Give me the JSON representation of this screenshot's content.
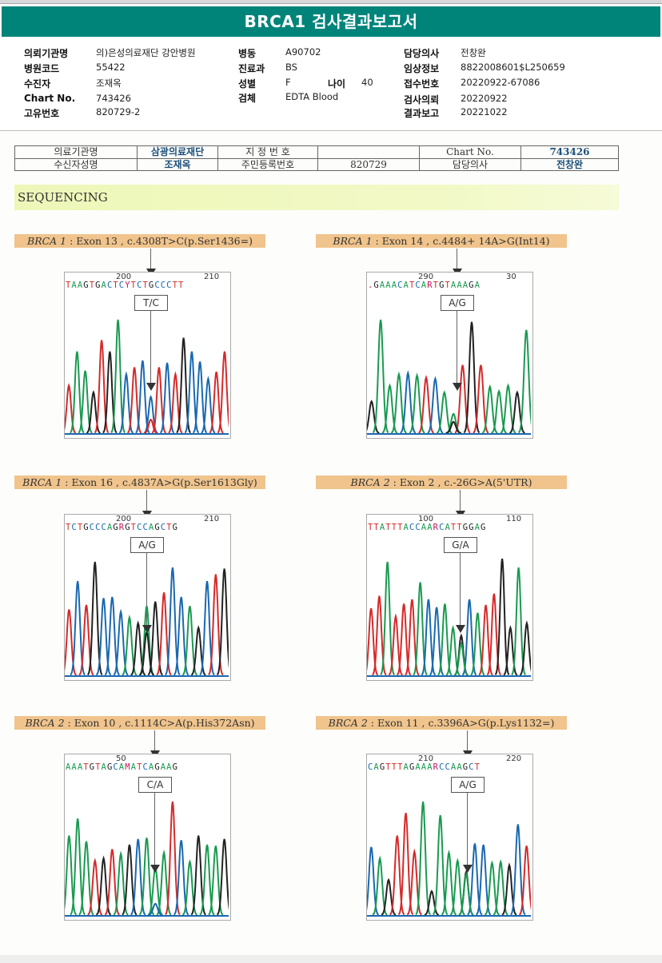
{
  "title": "BRCA1 검사결과보고서",
  "header_info": {
    "col1": [
      {
        "label": "의뢰기관명",
        "value": "의)은성의료재단 강안병원"
      },
      {
        "label": "병원코드",
        "value": "55422"
      },
      {
        "label": "수진자",
        "value": "조재옥"
      },
      {
        "label": "Chart No.",
        "value": "743426"
      },
      {
        "label": "고유번호",
        "value": "820729-2"
      }
    ],
    "col2": [
      {
        "label": "병동",
        "value": "A90702"
      },
      {
        "label": "진료과",
        "value": "BS"
      },
      {
        "label": "성별",
        "value": "F"
      },
      {
        "label": "검체",
        "value": "EDTA Blood"
      }
    ],
    "age": {
      "label": "나이",
      "value": "40"
    },
    "col3": [
      {
        "label": "담당의사",
        "value": "전창완"
      },
      {
        "label": "임상정보",
        "value": "8822008601$L250659"
      },
      {
        "label": "접수번호",
        "value": "20220922-67086"
      },
      {
        "label": "검사의뢰",
        "value": "20220922"
      },
      {
        "label": "결과보고",
        "value": "20221022"
      }
    ]
  },
  "patient_table": {
    "row1": [
      "의료기관명",
      "삼광의료재단",
      "지 정 번 호",
      "",
      "Chart No.",
      "743426"
    ],
    "row2": [
      "수신자성명",
      "조재옥",
      "주민등록번호",
      "820729",
      "담당의사",
      "전창완"
    ]
  },
  "section_title": "SEQUENCING",
  "colors": {
    "header_bg": "#00847a",
    "variant_label_bg": "#f0c48c",
    "section_bg": "#eef7b8",
    "base_A": "#1a9a50",
    "base_C": "#1a68b0",
    "base_G": "#222222",
    "base_T": "#d62a2a",
    "base_ambiguous": "#c2185b"
  },
  "panels": [
    {
      "gene": "BRCA 1",
      "desc": " : Exon 13 , c.4308T>C(p.Ser1436=)",
      "tick_left": "200",
      "tick_right": "210",
      "sequence": "TAAGTGACTCYTCTGCCCTT",
      "genotype": "T/C",
      "chart_data": {
        "type": "line",
        "title": "BRCA 1 : Exon 13 , c.4308T>C(p.Ser1436=)",
        "x_labels": [
          "200",
          "210"
        ],
        "peaks": [
          {
            "base": "T",
            "h": 0.42
          },
          {
            "base": "A",
            "h": 0.72
          },
          {
            "base": "A",
            "h": 0.55
          },
          {
            "base": "G",
            "h": 0.36
          },
          {
            "base": "T",
            "h": 0.82
          },
          {
            "base": "G",
            "h": 0.72
          },
          {
            "base": "A",
            "h": 1.0
          },
          {
            "base": "C",
            "h": 0.52
          },
          {
            "base": "T",
            "h": 0.58
          },
          {
            "base": "C",
            "h": 0.64
          },
          {
            "base": "C",
            "h": 0.32
          },
          {
            "base": "T",
            "h": 0.58
          },
          {
            "base": "C",
            "h": 0.62
          },
          {
            "base": "T",
            "h": 0.52
          },
          {
            "base": "G",
            "h": 0.84
          },
          {
            "base": "C",
            "h": 0.72
          },
          {
            "base": "C",
            "h": 0.63
          },
          {
            "base": "C",
            "h": 0.48
          },
          {
            "base": "T",
            "h": 0.54
          },
          {
            "base": "T",
            "h": 0.72
          }
        ],
        "minor_peaks": [
          {
            "pos": 10,
            "base": "T",
            "h": 0.12
          }
        ]
      }
    },
    {
      "gene": "BRCA 1",
      "desc": " : Exon 14 , c.4484+ 14A>G(Int14)",
      "tick_left": "290",
      "tick_right": "30",
      "sequence": ".GAAACATCARTGTAAAGA",
      "genotype": "A/G",
      "chart_data": {
        "type": "line",
        "title": "BRCA 1 : Exon 14 , c.4484+ 14A>G(Int14)",
        "x_labels": [
          "290",
          "30"
        ],
        "peaks": [
          {
            "base": "G",
            "h": 0.28
          },
          {
            "base": "A",
            "h": 1.0
          },
          {
            "base": "A",
            "h": 0.42
          },
          {
            "base": "A",
            "h": 0.52
          },
          {
            "base": "C",
            "h": 0.53
          },
          {
            "base": "A",
            "h": 0.51
          },
          {
            "base": "T",
            "h": 0.49
          },
          {
            "base": "C",
            "h": 0.48
          },
          {
            "base": "A",
            "h": 0.36
          },
          {
            "base": "A",
            "h": 0.17
          },
          {
            "base": "T",
            "h": 0.6
          },
          {
            "base": "G",
            "h": 0.98
          },
          {
            "base": "T",
            "h": 0.6
          },
          {
            "base": "A",
            "h": 0.41
          },
          {
            "base": "A",
            "h": 0.37
          },
          {
            "base": "A",
            "h": 0.42
          },
          {
            "base": "G",
            "h": 0.36
          },
          {
            "base": "A",
            "h": 0.91
          }
        ],
        "minor_peaks": [
          {
            "pos": 9,
            "base": "G",
            "h": 0.1
          }
        ]
      }
    },
    {
      "gene": "BRCA 1",
      "desc": " : Exon 16 , c.4837A>G(p.Ser1613Gly)",
      "tick_left": "200",
      "tick_right": "210",
      "sequence": "TCTGCCCAGRGTCCAGCTG",
      "genotype": "A/G",
      "chart_data": {
        "type": "line",
        "title": "BRCA 1 : Exon 16 , c.4837A>G(p.Ser1613Gly)",
        "x_labels": [
          "200",
          "210"
        ],
        "peaks": [
          {
            "base": "T",
            "h": 0.58
          },
          {
            "base": "C",
            "h": 0.83
          },
          {
            "base": "T",
            "h": 0.62
          },
          {
            "base": "G",
            "h": 1.0
          },
          {
            "base": "C",
            "h": 0.68
          },
          {
            "base": "C",
            "h": 0.69
          },
          {
            "base": "C",
            "h": 0.56
          },
          {
            "base": "A",
            "h": 0.51
          },
          {
            "base": "G",
            "h": 0.46
          },
          {
            "base": "A",
            "h": 0.61
          },
          {
            "base": "G",
            "h": 0.65
          },
          {
            "base": "T",
            "h": 0.73
          },
          {
            "base": "C",
            "h": 0.95
          },
          {
            "base": "C",
            "h": 0.69
          },
          {
            "base": "A",
            "h": 0.61
          },
          {
            "base": "G",
            "h": 0.42
          },
          {
            "base": "C",
            "h": 0.83
          },
          {
            "base": "T",
            "h": 0.89
          },
          {
            "base": "G",
            "h": 0.94
          }
        ],
        "minor_peaks": [
          {
            "pos": 9,
            "base": "G",
            "h": 0.38
          }
        ]
      }
    },
    {
      "gene": "BRCA 2",
      "desc": " : Exon 2 , c.-26G>A(5'UTR)",
      "tick_left": "100",
      "tick_right": "110",
      "sequence": "TTATTTACCAARCATTGGAG",
      "genotype": "G/A",
      "chart_data": {
        "type": "line",
        "title": "BRCA 2 : Exon 2 , c.-26G>A(5'UTR)",
        "x_labels": [
          "100",
          "110"
        ],
        "peaks": [
          {
            "base": "T",
            "h": 0.59
          },
          {
            "base": "T",
            "h": 0.7
          },
          {
            "base": "A",
            "h": 1.0
          },
          {
            "base": "T",
            "h": 0.52
          },
          {
            "base": "T",
            "h": 0.63
          },
          {
            "base": "T",
            "h": 0.67
          },
          {
            "base": "A",
            "h": 0.82
          },
          {
            "base": "C",
            "h": 0.67
          },
          {
            "base": "C",
            "h": 0.6
          },
          {
            "base": "A",
            "h": 0.63
          },
          {
            "base": "A",
            "h": 0.42
          },
          {
            "base": "G",
            "h": 0.35
          },
          {
            "base": "C",
            "h": 0.67
          },
          {
            "base": "A",
            "h": 0.55
          },
          {
            "base": "T",
            "h": 0.62
          },
          {
            "base": "T",
            "h": 0.72
          },
          {
            "base": "G",
            "h": 1.03
          },
          {
            "base": "G",
            "h": 0.42
          },
          {
            "base": "A",
            "h": 0.95
          },
          {
            "base": "G",
            "h": 0.46
          }
        ],
        "minor_peaks": [
          {
            "pos": 11,
            "base": "A",
            "h": 0.28
          }
        ]
      }
    },
    {
      "gene": "BRCA 2",
      "desc": " : Exon 10 , c.1114C>A(p.His372Asn)",
      "tick_left": "50",
      "tick_right": "",
      "sequence": "AAATGTAGCAMATCAGAAG",
      "genotype": "C/A",
      "chart_data": {
        "type": "line",
        "title": "BRCA 2 : Exon 10 , c.1114C>A(p.His372Asn)",
        "x_labels": [
          "50"
        ],
        "peaks": [
          {
            "base": "A",
            "h": 0.7
          },
          {
            "base": "A",
            "h": 0.85
          },
          {
            "base": "A",
            "h": 0.65
          },
          {
            "base": "T",
            "h": 0.48
          },
          {
            "base": "G",
            "h": 0.5
          },
          {
            "base": "T",
            "h": 0.58
          },
          {
            "base": "A",
            "h": 0.54
          },
          {
            "base": "G",
            "h": 0.62
          },
          {
            "base": "C",
            "h": 0.67
          },
          {
            "base": "A",
            "h": 0.68
          },
          {
            "base": "A",
            "h": 0.42
          },
          {
            "base": "A",
            "h": 0.55
          },
          {
            "base": "T",
            "h": 1.0
          },
          {
            "base": "C",
            "h": 0.66
          },
          {
            "base": "A",
            "h": 0.47
          },
          {
            "base": "G",
            "h": 0.7
          },
          {
            "base": "A",
            "h": 0.62
          },
          {
            "base": "A",
            "h": 0.61
          },
          {
            "base": "G",
            "h": 0.67
          }
        ],
        "minor_peaks": [
          {
            "pos": 10,
            "base": "C",
            "h": 0.1
          }
        ]
      }
    },
    {
      "gene": "BRCA 2",
      "desc": " : Exon 11 , c.3396A>G(p.Lys1132=)",
      "tick_left": "210",
      "tick_right": "220",
      "sequence": "CAGTTTAGAAARCCAAGCT",
      "genotype": "A/G",
      "chart_data": {
        "type": "line",
        "title": "BRCA 2 : Exon 11 , c.3396A>G(p.Lys1132=)",
        "x_labels": [
          "210",
          "220"
        ],
        "peaks": [
          {
            "base": "C",
            "h": 0.6
          },
          {
            "base": "A",
            "h": 0.5
          },
          {
            "base": "G",
            "h": 0.31
          },
          {
            "base": "T",
            "h": 0.7
          },
          {
            "base": "T",
            "h": 0.9
          },
          {
            "base": "T",
            "h": 0.56
          },
          {
            "base": "A",
            "h": 1.0
          },
          {
            "base": "G",
            "h": 0.21
          },
          {
            "base": "A",
            "h": 0.88
          },
          {
            "base": "A",
            "h": 0.55
          },
          {
            "base": "A",
            "h": 0.48
          },
          {
            "base": "G",
            "h": 0.38
          },
          {
            "base": "C",
            "h": 0.63
          },
          {
            "base": "C",
            "h": 0.62
          },
          {
            "base": "A",
            "h": 0.46
          },
          {
            "base": "A",
            "h": 0.47
          },
          {
            "base": "G",
            "h": 0.44
          },
          {
            "base": "C",
            "h": 0.8
          },
          {
            "base": "T",
            "h": 0.61
          }
        ],
        "minor_peaks": [
          {
            "pos": 11,
            "base": "A",
            "h": 0.36
          }
        ]
      }
    }
  ]
}
